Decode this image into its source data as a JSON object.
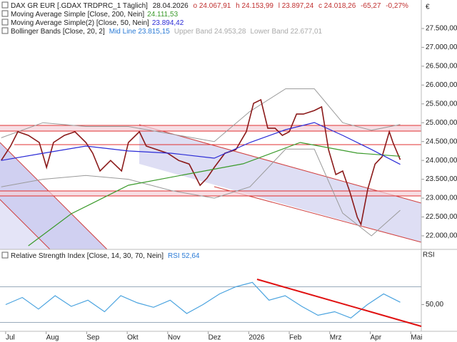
{
  "chart_data": [
    {
      "type": "line",
      "title": "DAX GR EUR [.GDAX TRDPRC_1 Täglich]",
      "date": "28.04.2026",
      "quote": [
        {
          "value": 24067.91,
          "label": "o 24.067,91"
        },
        {
          "value": 24153.99,
          "label": "h 24.153,99"
        },
        {
          "value": 23897.24,
          "label": "l 23.897,24"
        },
        {
          "value": 24018.26,
          "label": "c 24.018,26"
        },
        {
          "value": -65.27,
          "label": "-65,27"
        },
        {
          "value": -0.27,
          "label": "-0,27%"
        }
      ],
      "currency": "€",
      "xlim": [
        -0.14,
        10.26
      ],
      "ylim": [
        21640,
        28256
      ],
      "yticks": [
        {
          "value": 22000,
          "label": "22.000,00"
        },
        {
          "value": 22500,
          "label": "22.500,00"
        },
        {
          "value": 23000,
          "label": "23.000,00"
        },
        {
          "value": 23500,
          "label": "23.500,00"
        },
        {
          "value": 24000,
          "label": "24.000,00"
        },
        {
          "value": 24500,
          "label": "24.500,00"
        },
        {
          "value": 25000,
          "label": "25.000,00"
        },
        {
          "value": 25500,
          "label": "25.500,00"
        },
        {
          "value": 26000,
          "label": "26.000,00"
        },
        {
          "value": 26500,
          "label": "26.500,00"
        },
        {
          "value": 27000,
          "label": "27.000,00"
        },
        {
          "value": 27500,
          "label": "27.500,00"
        }
      ],
      "series": [
        {
          "color": "#8b1a1a",
          "x": [
            -0.11,
            0.12,
            0.3,
            0.56,
            0.83,
            1.01,
            1.18,
            1.45,
            1.71,
            1.98,
            2.15,
            2.33,
            2.59,
            2.86,
            3.03,
            3.3,
            3.47,
            3.74,
            4.0,
            4.27,
            4.53,
            4.8,
            4.97,
            5.15,
            5.41,
            5.68,
            5.94,
            6.12,
            6.3,
            6.47,
            6.65,
            6.83,
            7.0,
            7.18,
            7.35,
            7.62,
            7.8,
            7.97,
            8.15,
            8.32,
            8.5,
            8.68,
            8.77,
            8.94,
            9.12,
            9.29,
            9.47,
            9.56,
            9.74
          ],
          "values": [
            24000,
            24380,
            24760,
            24665,
            24475,
            23815,
            24475,
            24665,
            24760,
            24475,
            24190,
            23720,
            24000,
            23720,
            24475,
            24760,
            24380,
            24285,
            24190,
            24000,
            23905,
            23340,
            23530,
            23815,
            24190,
            24285,
            24760,
            25515,
            25610,
            24855,
            24855,
            24665,
            24760,
            25230,
            25230,
            25325,
            25420,
            24285,
            23625,
            23720,
            23150,
            22490,
            22300,
            23245,
            23905,
            24095,
            24760,
            24475,
            24018.26
          ]
        },
        {
          "name": "Moving Average Simple [Close, 200, Nein]",
          "color": "#3a9a2a",
          "last": {
            "value": 24111.53,
            "label": "24.111,53"
          },
          "x": [
            0.56,
            1.62,
            3.03,
            4.44,
            5.86,
            7.27,
            8.68,
            9.74
          ],
          "values": [
            21735,
            22586,
            23342,
            23626,
            23910,
            24476,
            24193,
            24111.53
          ]
        },
        {
          "name": "Moving Average Simple(2) [Close, 50, Nein]",
          "color": "#2b2bd6",
          "last": {
            "value": 23894.42,
            "label": "23.894,42"
          },
          "x": [
            -0.11,
            0.92,
            1.98,
            3.03,
            4.09,
            5.15,
            6.03,
            6.91,
            7.62,
            8.32,
            9.03,
            9.74
          ],
          "values": [
            24000,
            24190,
            24380,
            24250,
            24190,
            24060,
            24476,
            24816,
            25005,
            24665,
            24290,
            23894.42
          ]
        }
      ],
      "bollinger": {
        "name": "Bollinger Bands [Close, 20, 2]",
        "color": "#9a9a9a",
        "mid": {
          "value": 23815.15,
          "label": "Mid Line 23.815,15"
        },
        "upper": {
          "value": 24953.28,
          "label": "Upper Band 24.953,28"
        },
        "lower": {
          "value": 22677.01,
          "label": "Lower Band 22.677,01"
        },
        "x": [
          -0.11,
          0.92,
          1.98,
          3.03,
          4.09,
          5.15,
          6.03,
          6.91,
          7.62,
          8.32,
          9.03,
          9.74
        ],
        "upper_values": [
          24600,
          25000,
          24900,
          24900,
          24700,
          24500,
          25300,
          25900,
          25900,
          25000,
          24800,
          24953.28
        ],
        "lower_values": [
          23300,
          23500,
          23600,
          23500,
          23200,
          23000,
          23300,
          24300,
          24300,
          22600,
          22000,
          22677.01
        ]
      },
      "xticks": [
        {
          "value": 0,
          "label": "Jul"
        },
        {
          "value": 1,
          "label": "Aug"
        },
        {
          "value": 2,
          "label": "Sep"
        },
        {
          "value": 3,
          "label": "Okt"
        },
        {
          "value": 4,
          "label": "Nov"
        },
        {
          "value": 5,
          "label": "Dez"
        },
        {
          "value": 6,
          "label": "2026"
        },
        {
          "value": 7,
          "label": "Feb"
        },
        {
          "value": 8,
          "label": "Mrz"
        },
        {
          "value": 9,
          "label": "Apr"
        },
        {
          "value": 10,
          "label": "Mai"
        }
      ]
    },
    {
      "type": "line",
      "title": "Relative Strength Index [Close, 14, 30, 70, Nein]",
      "axis_label": "RSI",
      "last": {
        "value": 52.64,
        "label": "RSI 52,64"
      },
      "xlim": [
        -0.14,
        10.26
      ],
      "ylim": [
        20,
        100
      ],
      "yticks": [
        {
          "value": 50,
          "label": "50,00"
        }
      ],
      "levels": [
        30,
        70
      ],
      "series": [
        {
          "color": "#4aa3df",
          "x": [
            0,
            0.41,
            0.81,
            1.22,
            1.62,
            2.03,
            2.44,
            2.84,
            3.25,
            3.65,
            4.06,
            4.47,
            4.87,
            5.28,
            5.68,
            6.09,
            6.5,
            6.9,
            7.31,
            7.71,
            8.12,
            8.52,
            8.93,
            9.33,
            9.74
          ],
          "values": [
            50,
            58,
            45,
            60,
            48,
            55,
            42,
            60,
            52,
            47,
            55,
            40,
            50,
            62,
            70,
            75,
            55,
            60,
            48,
            38,
            42,
            35,
            50,
            62,
            52.64
          ]
        }
      ]
    }
  ]
}
